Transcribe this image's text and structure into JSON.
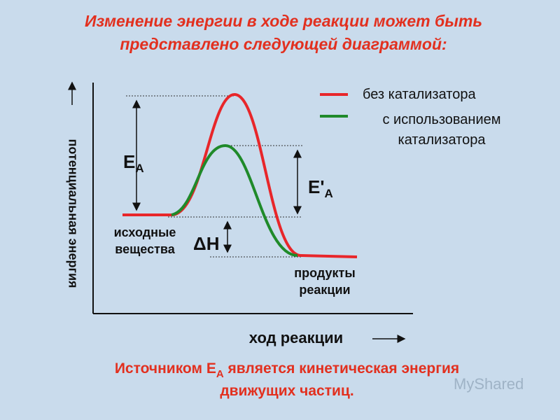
{
  "title": {
    "lines": [
      "Изменение энергии в ходе реакции может быть",
      "представлено следующей диаграммой:"
    ]
  },
  "axes": {
    "y_label": "потенциальная энергия",
    "x_label": "ход реакции"
  },
  "legend": [
    {
      "label_lines": [
        "без катализатора"
      ],
      "color": "#e8262a"
    },
    {
      "label_lines": [
        "с использованием",
        "катализатора"
      ],
      "color": "#1f8a2a"
    }
  ],
  "labels": {
    "ea": {
      "main": "E",
      "sub": "A"
    },
    "ea_cat": {
      "main": "E'",
      "sub": "A"
    },
    "dh": "ΔH",
    "reactants": [
      "исходные",
      "вещества"
    ],
    "products": [
      "продукты",
      "реакции"
    ]
  },
  "footer": {
    "line1_before": "Источником E",
    "line1_sub": "A",
    "line1_after": " является кинетическая энергия",
    "line2": "движущих частиц."
  },
  "watermark": "MyShared"
}
